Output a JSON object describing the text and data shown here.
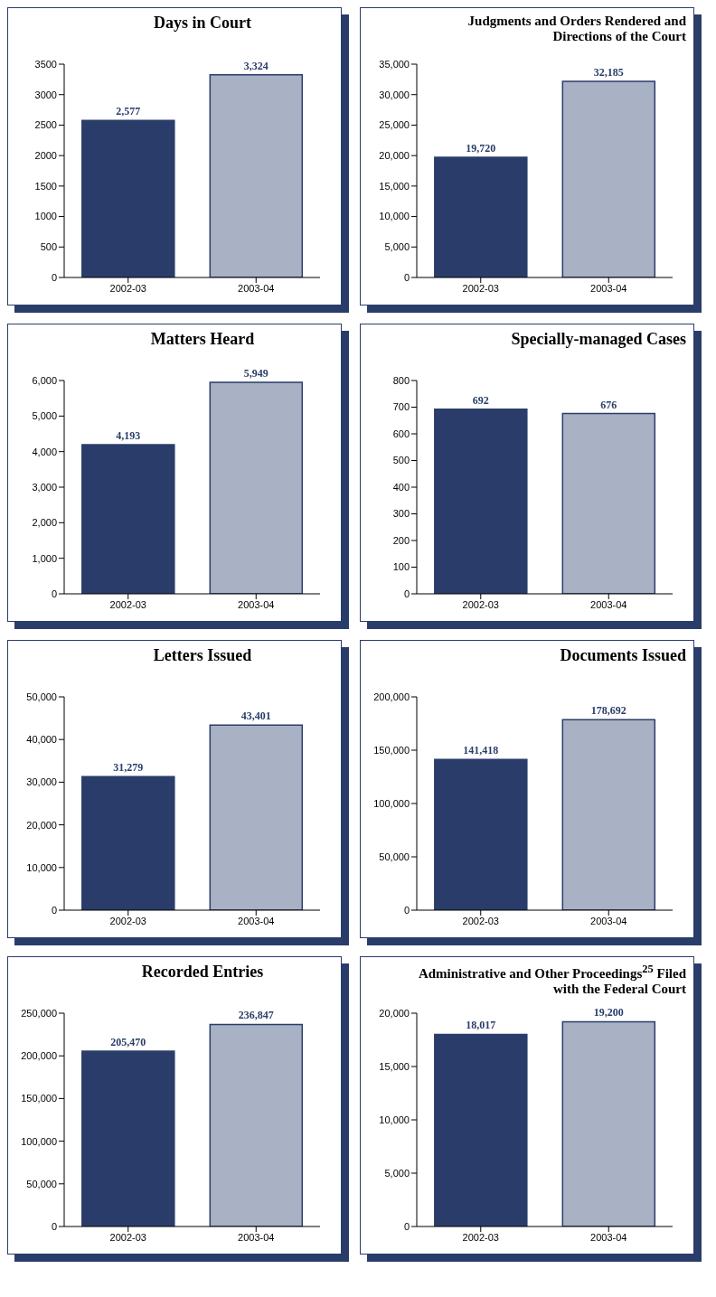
{
  "chart_data": [
    {
      "type": "bar",
      "title": "Days in Court",
      "categories": [
        "2002-03",
        "2003-04"
      ],
      "values": [
        2577,
        3324
      ],
      "colors": [
        "#2a3d6a",
        "#a9b1c5"
      ],
      "ylim": [
        0,
        3500
      ],
      "yticks": [
        0,
        500,
        1000,
        1500,
        2000,
        2500,
        3000,
        3500
      ],
      "value_labels": [
        "2,577",
        "3,324"
      ]
    },
    {
      "type": "bar",
      "title": "Judgments and Orders Rendered and Directions of the Court",
      "categories": [
        "2002-03",
        "2003-04"
      ],
      "values": [
        19720,
        32185
      ],
      "colors": [
        "#2a3d6a",
        "#a9b1c5"
      ],
      "ylim": [
        0,
        35000
      ],
      "yticks": [
        0,
        {
          "value": 5000,
          "label": "5,000"
        },
        {
          "value": 10000,
          "label": "10,000"
        },
        {
          "value": 15000,
          "label": "15,000"
        },
        {
          "value": 20000,
          "label": "20,000"
        },
        {
          "value": 25000,
          "label": "25,000"
        },
        {
          "value": 30000,
          "label": "30,000"
        },
        {
          "value": 35000,
          "label": "35,000"
        }
      ],
      "value_labels": [
        "19,720",
        "32,185"
      ]
    },
    {
      "type": "bar",
      "title": "Matters Heard",
      "categories": [
        "2002-03",
        "2003-04"
      ],
      "values": [
        4193,
        5949
      ],
      "colors": [
        "#2a3d6a",
        "#a9b1c5"
      ],
      "ylim": [
        0,
        6000
      ],
      "yticks": [
        0,
        {
          "value": 1000,
          "label": "1,000"
        },
        {
          "value": 2000,
          "label": "2,000"
        },
        {
          "value": 3000,
          "label": "3,000"
        },
        {
          "value": 4000,
          "label": "4,000"
        },
        {
          "value": 5000,
          "label": "5,000"
        },
        {
          "value": 6000,
          "label": "6,000"
        }
      ],
      "value_labels": [
        "4,193",
        "5,949"
      ]
    },
    {
      "type": "bar",
      "title": "Specially-managed Cases",
      "categories": [
        "2002-03",
        "2003-04"
      ],
      "values": [
        692,
        676
      ],
      "colors": [
        "#2a3d6a",
        "#a9b1c5"
      ],
      "ylim": [
        0,
        800
      ],
      "yticks": [
        0,
        100,
        200,
        300,
        400,
        500,
        600,
        700,
        800
      ],
      "value_labels": [
        "692",
        "676"
      ]
    },
    {
      "type": "bar",
      "title": "Letters Issued",
      "categories": [
        "2002-03",
        "2003-04"
      ],
      "values": [
        31279,
        43401
      ],
      "colors": [
        "#2a3d6a",
        "#a9b1c5"
      ],
      "ylim": [
        0,
        50000
      ],
      "yticks": [
        0,
        {
          "value": 10000,
          "label": "10,000"
        },
        {
          "value": 20000,
          "label": "20,000"
        },
        {
          "value": 30000,
          "label": "30,000"
        },
        {
          "value": 40000,
          "label": "40,000"
        },
        {
          "value": 50000,
          "label": "50,000"
        }
      ],
      "value_labels": [
        "31,279",
        "43,401"
      ]
    },
    {
      "type": "bar",
      "title": "Documents Issued",
      "categories": [
        "2002-03",
        "2003-04"
      ],
      "values": [
        141418,
        178692
      ],
      "colors": [
        "#2a3d6a",
        "#a9b1c5"
      ],
      "ylim": [
        0,
        200000
      ],
      "yticks": [
        0,
        {
          "value": 50000,
          "label": "50,000"
        },
        {
          "value": 100000,
          "label": "100,000"
        },
        {
          "value": 150000,
          "label": "150,000"
        },
        {
          "value": 200000,
          "label": "200,000"
        }
      ],
      "value_labels": [
        "141,418",
        "178,692"
      ]
    },
    {
      "type": "bar",
      "title": "Recorded Entries",
      "categories": [
        "2002-03",
        "2003-04"
      ],
      "values": [
        205470,
        236847
      ],
      "colors": [
        "#2a3d6a",
        "#a9b1c5"
      ],
      "ylim": [
        0,
        250000
      ],
      "yticks": [
        0,
        {
          "value": 50000,
          "label": "50,000"
        },
        {
          "value": 100000,
          "label": "100,000"
        },
        {
          "value": 150000,
          "label": "150,000"
        },
        {
          "value": 200000,
          "label": "200,000"
        },
        {
          "value": 250000,
          "label": "250,000"
        }
      ],
      "value_labels": [
        "205,470",
        "236,847"
      ]
    },
    {
      "type": "bar",
      "title": "Administrative and Other Proceedings$^{25}$ Filed with the Federal Court",
      "categories": [
        "2002-03",
        "2003-04"
      ],
      "values": [
        18017,
        19200
      ],
      "colors": [
        "#2a3d6a",
        "#a9b1c5"
      ],
      "ylim": [
        0,
        20000
      ],
      "yticks": [
        0,
        {
          "value": 5000,
          "label": "5,000"
        },
        {
          "value": 10000,
          "label": "10,000"
        },
        {
          "value": 15000,
          "label": "15,000"
        },
        {
          "value": 20000,
          "label": "20,000"
        }
      ],
      "value_labels": [
        "18,017",
        "19,200"
      ]
    }
  ]
}
